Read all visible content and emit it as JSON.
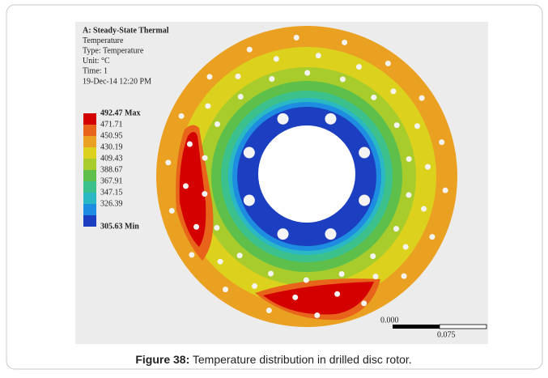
{
  "figure": {
    "header": [
      "A: Steady-State Thermal",
      "Temperature",
      "Type: Temperature",
      "Unit: °C",
      "Time: 1",
      "19-Dec-14 12:20 PM"
    ],
    "legend": [
      {
        "label": "492.47 Max",
        "color": "#d40000"
      },
      {
        "label": "471.71",
        "color": "#e8641a"
      },
      {
        "label": "450.95",
        "color": "#eaa020"
      },
      {
        "label": "430.19",
        "color": "#dcd21e"
      },
      {
        "label": "409.43",
        "color": "#a8cc2c"
      },
      {
        "label": "388.67",
        "color": "#5ec04a"
      },
      {
        "label": "367.91",
        "color": "#3cc08c"
      },
      {
        "label": "347.15",
        "color": "#2ab8c4"
      },
      {
        "label": "326.39",
        "color": "#1e8ce0"
      },
      {
        "label": "305.63 Min",
        "color": "#1c3ec0"
      }
    ],
    "scale_bar": {
      "start": "0.000",
      "end": "0.075"
    },
    "caption": {
      "label": "Figure 38:",
      "text": " Temperature distribution in drilled disc rotor."
    }
  }
}
